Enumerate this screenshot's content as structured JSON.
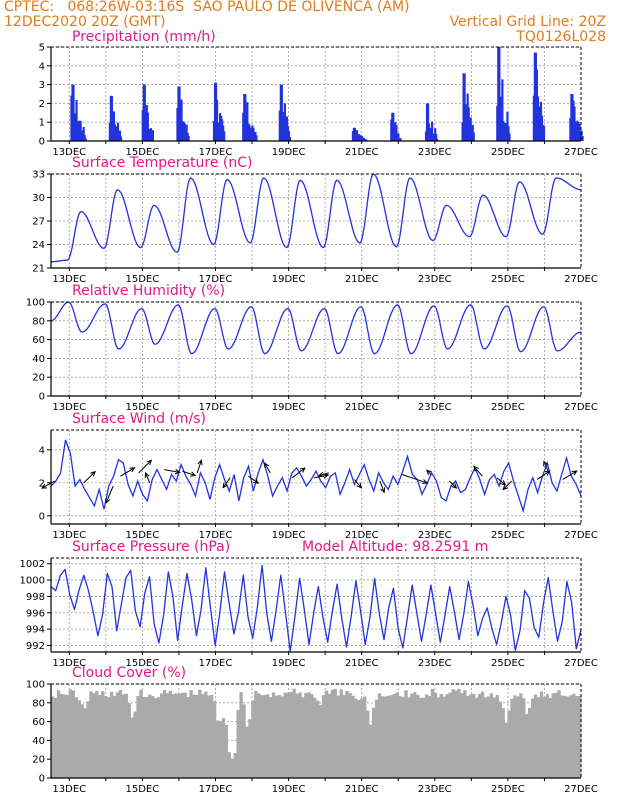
{
  "header": {
    "line1": "CPTEC:   068:26W-03:16S  SAO PAULO DE OLIVENCA (AM)",
    "line2": "12DEC2020 20Z (GMT)",
    "grid_note": "Vertical Grid Line: 20Z",
    "code": "TQ0126L028"
  },
  "colors": {
    "header": "#e07b1a",
    "title": "#e0198a",
    "series": "#2233dd",
    "cloud": "#aaaaaa",
    "grid": "#9a9a9a"
  },
  "chart_data": [
    {
      "type": "bar",
      "title": "Precipitation (mm/h)",
      "yticks": [
        "0",
        "1",
        "2",
        "3",
        "4",
        "5"
      ],
      "ylim": [
        0,
        5
      ],
      "xticks": [
        "13DEC",
        "15DEC",
        "17DEC",
        "19DEC",
        "21DEC",
        "23DEC",
        "25DEC",
        "27DEC"
      ],
      "events": [
        {
          "x": 0.65,
          "peak": 3.0
        },
        {
          "x": 1.7,
          "peak": 2.4
        },
        {
          "x": 2.6,
          "peak": 3.0
        },
        {
          "x": 3.55,
          "peak": 2.9
        },
        {
          "x": 4.55,
          "peak": 3.1
        },
        {
          "x": 5.35,
          "peak": 2.5
        },
        {
          "x": 6.35,
          "peak": 3.0
        },
        {
          "x": 8.35,
          "peak": 0.7
        },
        {
          "x": 9.4,
          "peak": 1.5
        },
        {
          "x": 10.35,
          "peak": 2.0
        },
        {
          "x": 11.35,
          "peak": 3.6
        },
        {
          "x": 12.3,
          "peak": 5.0
        },
        {
          "x": 13.3,
          "peak": 4.7
        },
        {
          "x": 14.3,
          "peak": 2.5
        }
      ]
    },
    {
      "type": "line",
      "title": "Surface Temperature (nC)",
      "yticks": [
        "21",
        "24",
        "27",
        "30",
        "33"
      ],
      "ylim": [
        21,
        33
      ],
      "xticks": [
        "13DEC",
        "15DEC",
        "17DEC",
        "19DEC",
        "21DEC",
        "23DEC",
        "25DEC",
        "27DEC"
      ],
      "daily_max": [
        28.2,
        31.0,
        29.0,
        32.5,
        32.3,
        32.5,
        32.2,
        32.2,
        33.0,
        32.5,
        29.0,
        30.3,
        32.0,
        32.5
      ],
      "daily_min": [
        22.0,
        23.5,
        23.6,
        23.0,
        24.0,
        24.2,
        23.6,
        23.6,
        24.2,
        23.7,
        24.5,
        25.0,
        25.0,
        25.3
      ],
      "start": 21.8,
      "end": 31.0
    },
    {
      "type": "line",
      "title": "Relative Humidity (%)",
      "yticks": [
        "0",
        "20",
        "40",
        "60",
        "80",
        "100"
      ],
      "ylim": [
        0,
        100
      ],
      "xticks": [
        "13DEC",
        "15DEC",
        "17DEC",
        "19DEC",
        "21DEC",
        "23DEC",
        "25DEC",
        "27DEC"
      ],
      "daily_max": [
        100,
        98,
        93,
        97,
        93,
        95,
        93,
        93,
        95,
        97,
        96,
        97,
        96,
        95
      ],
      "daily_min": [
        68,
        50,
        55,
        45,
        50,
        45,
        48,
        45,
        45,
        45,
        50,
        50,
        47,
        48
      ],
      "start": 80,
      "end": 68
    },
    {
      "type": "line",
      "title": "Surface Wind (m/s)",
      "yticks": [
        "0",
        "2",
        "4"
      ],
      "ylim": [
        -0.5,
        5.2
      ],
      "xticks": [
        "13DEC",
        "15DEC",
        "17DEC",
        "19DEC",
        "21DEC",
        "23DEC",
        "25DEC",
        "27DEC"
      ],
      "values": [
        1.8,
        2.1,
        2.6,
        4.6,
        3.8,
        1.8,
        2.2,
        1.6,
        1.1,
        0.6,
        1.6,
        0.4,
        1.8,
        2.4,
        3.4,
        3.2,
        1.9,
        1.2,
        2.1,
        1.3,
        0.9,
        2.2,
        2.8,
        2.2,
        1.6,
        2.5,
        2.1,
        3.1,
        2.4,
        1.9,
        1.2,
        2.6,
        2.0,
        1.0,
        2.3,
        3.1,
        2.2,
        1.5,
        2.5,
        0.9,
        2.3,
        3.0,
        1.5,
        2.6,
        3.4,
        2.4,
        1.2,
        1.8,
        2.3,
        1.5,
        2.6,
        2.9,
        2.4,
        1.8,
        2.2,
        2.7,
        2.1,
        1.7,
        2.4,
        2.6,
        1.3,
        2.0,
        2.8,
        1.9,
        2.5,
        3.1,
        2.2,
        1.5,
        2.6,
        2.0,
        1.6,
        2.4,
        1.9,
        2.7,
        3.6,
        2.5,
        2.2,
        1.3,
        1.9,
        2.6,
        2.1,
        1.1,
        0.9,
        1.8,
        2.1,
        1.4,
        1.6,
        2.3,
        2.9,
        2.2,
        1.3,
        2.2,
        2.5,
        1.8,
        2.7,
        3.2,
        2.1,
        1.2,
        0.3,
        1.6,
        2.3,
        1.4,
        2.4,
        3.2,
        2.0,
        1.5,
        2.5,
        3.5,
        2.4,
        1.9,
        1.2
      ],
      "arrows": [
        {
          "x": 0.1,
          "y": 2.1,
          "u": -0.9,
          "v": -0.5
        },
        {
          "x": 0.9,
          "y": 2.0,
          "u": 0.8,
          "v": 0.8
        },
        {
          "x": 1.7,
          "y": 1.8,
          "u": -0.5,
          "v": -1.2
        },
        {
          "x": 1.9,
          "y": 2.4,
          "u": 1.0,
          "v": 0.6
        },
        {
          "x": 2.4,
          "y": 2.6,
          "u": 0.9,
          "v": 0.9
        },
        {
          "x": 2.7,
          "y": 2.0,
          "u": -0.3,
          "v": 0.7
        },
        {
          "x": 3.1,
          "y": 2.8,
          "u": 1.1,
          "v": -0.2
        },
        {
          "x": 3.6,
          "y": 2.7,
          "u": 0.9,
          "v": -0.3
        },
        {
          "x": 4.0,
          "y": 2.6,
          "u": 0.3,
          "v": 0.9
        },
        {
          "x": 4.9,
          "y": 2.3,
          "u": -0.5,
          "v": -0.7
        },
        {
          "x": 5.4,
          "y": 2.4,
          "u": 0.7,
          "v": -0.5
        },
        {
          "x": 6.0,
          "y": 2.6,
          "u": -0.4,
          "v": 0.7
        },
        {
          "x": 6.6,
          "y": 2.3,
          "u": 0.9,
          "v": 0.7
        },
        {
          "x": 7.2,
          "y": 2.3,
          "u": 1.0,
          "v": 0.2
        },
        {
          "x": 7.6,
          "y": 2.6,
          "u": -0.7,
          "v": -0.2
        },
        {
          "x": 8.3,
          "y": 2.2,
          "u": 0.5,
          "v": -0.6
        },
        {
          "x": 9.0,
          "y": 2.1,
          "u": 0.3,
          "v": -0.8
        },
        {
          "x": 9.6,
          "y": 2.5,
          "u": 1.8,
          "v": -0.6
        },
        {
          "x": 10.4,
          "y": 2.5,
          "u": -0.3,
          "v": 0.3
        },
        {
          "x": 10.9,
          "y": 2.1,
          "u": 0.5,
          "v": -0.5
        },
        {
          "x": 11.8,
          "y": 2.4,
          "u": -0.6,
          "v": 0.7
        },
        {
          "x": 12.2,
          "y": 2.3,
          "u": 0.6,
          "v": -0.5
        },
        {
          "x": 12.6,
          "y": 2.1,
          "u": -0.6,
          "v": -0.6
        },
        {
          "x": 13.3,
          "y": 2.2,
          "u": 0.9,
          "v": 0.6
        },
        {
          "x": 13.6,
          "y": 2.7,
          "u": -0.3,
          "v": 0.7
        },
        {
          "x": 14.0,
          "y": 2.2,
          "u": 1.0,
          "v": 0.6
        }
      ]
    },
    {
      "type": "line",
      "title": "Surface Pressure (hPa)",
      "annotation": "Model Altitude: 98.2591 m",
      "yticks": [
        "992",
        "994",
        "996",
        "998",
        "1000",
        "1002"
      ],
      "ylim": [
        991.2,
        1002.7
      ],
      "xticks": [
        "13DEC",
        "15DEC",
        "17DEC",
        "19DEC",
        "21DEC",
        "23DEC",
        "25DEC",
        "27DEC"
      ],
      "values": [
        999.2,
        998.7,
        1000.6,
        1001.3,
        998.2,
        996.4,
        998.8,
        1000.6,
        998.7,
        996.1,
        993.2,
        995.8,
        1000.8,
        999.2,
        993.8,
        997.1,
        1000.3,
        1001.2,
        996.2,
        994.3,
        998.4,
        1000.4,
        994.6,
        992.3,
        995.7,
        1001.0,
        998.0,
        992.6,
        996.9,
        1000.8,
        997.6,
        993.2,
        996.4,
        1001.5,
        996.6,
        992.0,
        996.0,
        1001.0,
        997.1,
        993.4,
        996.2,
        1000.6,
        995.5,
        992.9,
        996.7,
        1001.8,
        995.9,
        992.5,
        996.3,
        1000.6,
        996.0,
        991.3,
        995.5,
        1000.2,
        996.4,
        992.1,
        996.0,
        999.2,
        995.4,
        992.4,
        996.2,
        999.5,
        995.3,
        991.8,
        995.6,
        999.9,
        996.2,
        992.1,
        995.4,
        1000.2,
        995.9,
        992.7,
        996.6,
        999.0,
        994.1,
        991.7,
        995.5,
        999.4,
        996.0,
        992.5,
        995.8,
        999.4,
        995.9,
        992.4,
        995.7,
        999.2,
        996.1,
        992.7,
        995.8,
        999.8,
        996.9,
        993.2,
        995.3,
        996.6,
        994.1,
        992.1,
        994.8,
        998.0,
        995.7,
        991.4,
        993.8,
        998.7,
        997.8,
        994.2,
        993.0,
        997.2,
        1000.3,
        996.2,
        992.5,
        994.9,
        999.8,
        997.3,
        991.6,
        993.9
      ]
    },
    {
      "type": "bar",
      "title": "Cloud Cover (%)",
      "yticks": [
        "0",
        "20",
        "40",
        "60",
        "80",
        "100"
      ],
      "ylim": [
        0,
        100
      ],
      "xticks": [
        "13DEC",
        "15DEC",
        "17DEC",
        "19DEC",
        "21DEC",
        "23DEC",
        "25DEC",
        "27DEC"
      ],
      "gaps": [
        {
          "x": 0.85,
          "min": 65
        },
        {
          "x": 2.2,
          "min": 55
        },
        {
          "x": 2.7,
          "min": 88
        },
        {
          "x": 4.55,
          "min": 50
        },
        {
          "x": 4.8,
          "min": 25
        },
        {
          "x": 4.95,
          "min": 0
        },
        {
          "x": 5.35,
          "min": 45
        },
        {
          "x": 7.3,
          "min": 75
        },
        {
          "x": 8.35,
          "min": 80
        },
        {
          "x": 8.7,
          "min": 55
        },
        {
          "x": 9.1,
          "min": 85
        },
        {
          "x": 10.1,
          "min": 82
        },
        {
          "x": 11.6,
          "min": 85
        },
        {
          "x": 12.4,
          "min": 55
        },
        {
          "x": 13.0,
          "min": 60
        },
        {
          "x": 13.6,
          "min": 85
        }
      ]
    }
  ]
}
